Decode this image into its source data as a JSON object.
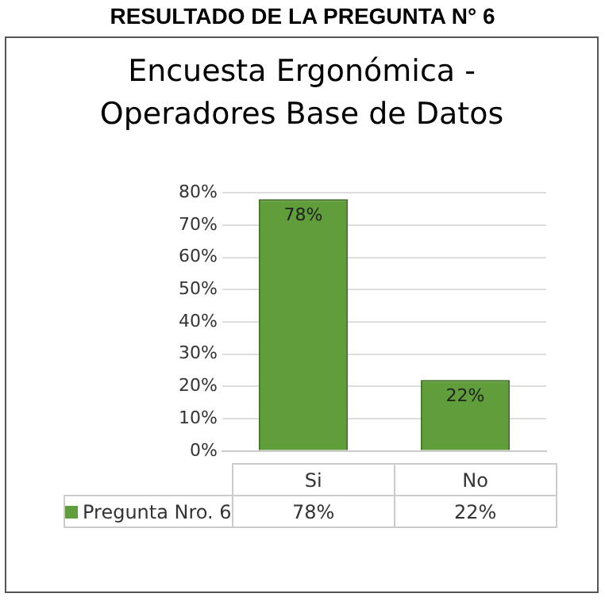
{
  "chart_data": {
    "type": "bar",
    "title": "RESULTADO DE LA PREGUNTA N° 6",
    "subtitle": "Encuesta Ergonómica - Operadores Base de Datos",
    "categories": [
      "Si",
      "No"
    ],
    "series": [
      {
        "name": "Pregunta Nro. 6",
        "color": "#5f9e3a",
        "values": [
          78,
          22
        ],
        "value_labels": [
          "78%",
          "22%"
        ]
      }
    ],
    "ylim": [
      0,
      80
    ],
    "yticks": [
      {
        "value": 0,
        "label": "0%"
      },
      {
        "value": 10,
        "label": "10%"
      },
      {
        "value": 20,
        "label": "20%"
      },
      {
        "value": 30,
        "label": "30%"
      },
      {
        "value": 40,
        "label": "40%"
      },
      {
        "value": 50,
        "label": "50%"
      },
      {
        "value": 60,
        "label": "60%"
      },
      {
        "value": 70,
        "label": "70%"
      },
      {
        "value": 80,
        "label": "80%"
      }
    ],
    "grid": "y",
    "legend": "bottom"
  }
}
